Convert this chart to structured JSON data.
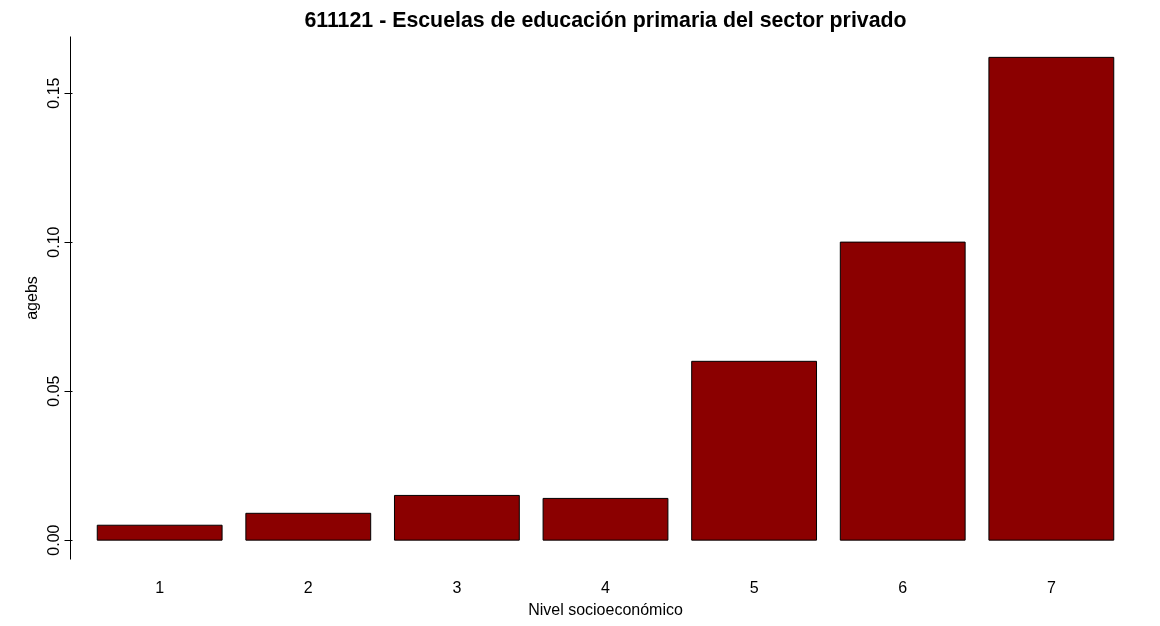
{
  "chart_data": {
    "type": "bar",
    "title": "611121 - Escuelas de educación primaria del sector privado",
    "xlabel": "Nivel socioeconómico",
    "ylabel": "agebs",
    "categories": [
      "1",
      "2",
      "3",
      "4",
      "5",
      "6",
      "7"
    ],
    "values": [
      0.005,
      0.009,
      0.015,
      0.014,
      0.06,
      0.1,
      0.162
    ],
    "color": "#8b0000",
    "ylim": [
      -0.0065,
      0.169
    ],
    "yticks": [
      {
        "value": 0,
        "label": "0.00"
      },
      {
        "value": 0.05,
        "label": "0.05"
      },
      {
        "value": 0.1,
        "label": "0.10"
      },
      {
        "value": 0.15,
        "label": "0.15"
      }
    ],
    "grid": false
  }
}
